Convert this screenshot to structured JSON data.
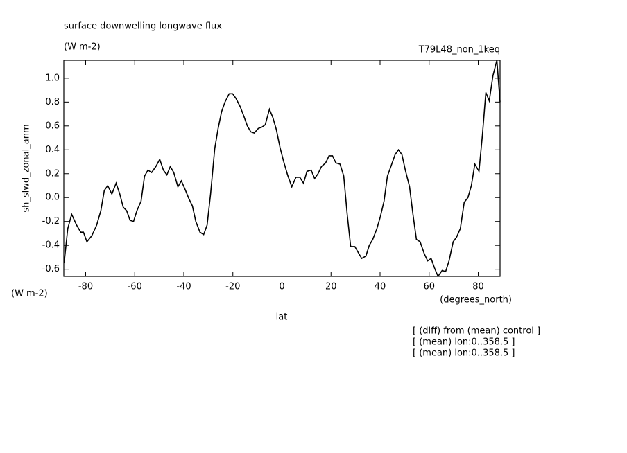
{
  "chart_data": {
    "type": "line",
    "title": "surface downwelling longwave flux",
    "subtitle": "(W m-2)",
    "dataset": "T79L48_non_1keq",
    "y_label": "sh_slwd_zonal_anm",
    "y_units": "(W m-2)",
    "x_label": "lat",
    "x_units": "(degrees_north)",
    "notes": [
      "[ (diff) from (mean) control ]",
      "[ (mean) lon:0..358.5 ]",
      "[ (mean) lon:0..358.5 ]"
    ],
    "color": "#000000",
    "xlim": [
      -88.9,
      88.9
    ],
    "ylim": [
      -0.66,
      1.15
    ],
    "xticks": [
      -80,
      -60,
      -40,
      -20,
      0,
      20,
      40,
      60,
      80
    ],
    "yticks": [
      -0.6,
      -0.4,
      -0.2,
      {
        "value": 0,
        "label": "0.0"
      },
      0.2,
      0.4,
      0.6,
      0.8,
      {
        "value": 1,
        "label": "1.0"
      }
    ],
    "x": [
      -88.8,
      -87.3,
      -85.7,
      -83.7,
      -82.0,
      -80.9,
      -79.5,
      -77.5,
      -75.5,
      -73.8,
      -72.4,
      -71.0,
      -69.3,
      -67.6,
      -66.1,
      -64.7,
      -63.3,
      -61.9,
      -60.5,
      -59.1,
      -57.4,
      -56.0,
      -54.6,
      -53.1,
      -51.4,
      -49.8,
      -48.3,
      -46.9,
      -45.5,
      -44.1,
      -42.4,
      -41.0,
      -39.3,
      -37.9,
      -36.5,
      -35.1,
      -33.4,
      -31.9,
      -30.5,
      -29.1,
      -27.4,
      -26.0,
      -24.6,
      -23.2,
      -21.5,
      -20.1,
      -18.7,
      -17.0,
      -15.5,
      -14.1,
      -12.7,
      -11.3,
      -9.6,
      -8.2,
      -6.8,
      -5.1,
      -3.7,
      -2.3,
      -0.8,
      0.6,
      2.3,
      4.0,
      5.7,
      7.3,
      8.8,
      10.2,
      11.9,
      13.3,
      14.7,
      16.1,
      17.8,
      19.2,
      20.6,
      22.0,
      23.7,
      25.2,
      26.6,
      28.0,
      29.7,
      31.1,
      32.5,
      34.2,
      35.6,
      37.0,
      38.7,
      40.1,
      41.6,
      43.0,
      44.4,
      46.1,
      47.5,
      48.9,
      50.3,
      52.0,
      53.4,
      54.8,
      56.3,
      58.0,
      59.4,
      60.8,
      62.2,
      63.6,
      65.3,
      66.7,
      68.1,
      69.8,
      71.2,
      72.7,
      74.3,
      75.8,
      77.2,
      78.6,
      80.3,
      81.7,
      83.1,
      84.5,
      86.0,
      87.6,
      88.9
    ],
    "values": [
      -0.55,
      -0.26,
      -0.14,
      -0.23,
      -0.29,
      -0.29,
      -0.37,
      -0.32,
      -0.23,
      -0.11,
      0.06,
      0.1,
      0.03,
      0.12,
      0.03,
      -0.08,
      -0.11,
      -0.19,
      -0.2,
      -0.11,
      -0.03,
      0.18,
      0.23,
      0.21,
      0.26,
      0.32,
      0.23,
      0.19,
      0.26,
      0.21,
      0.09,
      0.14,
      0.06,
      -0.01,
      -0.07,
      -0.2,
      -0.29,
      -0.31,
      -0.23,
      0.03,
      0.41,
      0.58,
      0.72,
      0.8,
      0.87,
      0.87,
      0.83,
      0.76,
      0.68,
      0.6,
      0.55,
      0.54,
      0.58,
      0.59,
      0.61,
      0.74,
      0.67,
      0.57,
      0.42,
      0.31,
      0.19,
      0.09,
      0.17,
      0.17,
      0.12,
      0.22,
      0.23,
      0.16,
      0.2,
      0.26,
      0.29,
      0.35,
      0.35,
      0.29,
      0.28,
      0.18,
      -0.14,
      -0.41,
      -0.41,
      -0.46,
      -0.51,
      -0.49,
      -0.4,
      -0.35,
      -0.26,
      -0.16,
      -0.03,
      0.18,
      0.26,
      0.36,
      0.4,
      0.36,
      0.23,
      0.09,
      -0.14,
      -0.35,
      -0.37,
      -0.47,
      -0.53,
      -0.51,
      -0.59,
      -0.66,
      -0.61,
      -0.62,
      -0.53,
      -0.37,
      -0.33,
      -0.26,
      -0.04,
      0.0,
      0.1,
      0.28,
      0.22,
      0.52,
      0.88,
      0.81,
      1.02,
      1.15,
      0.8
    ]
  }
}
